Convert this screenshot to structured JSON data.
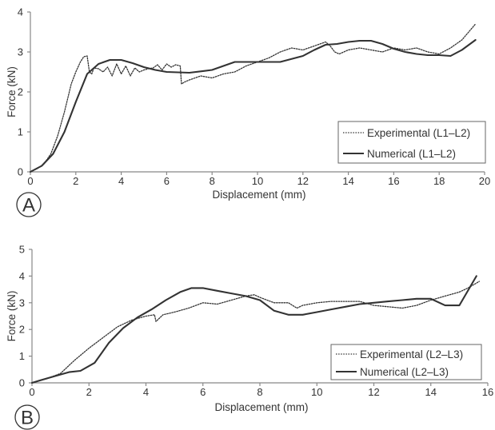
{
  "chart_data": [
    {
      "type": "line",
      "panel_label": "A",
      "xlabel": "Displacement (mm)",
      "ylabel": "Force (kN)",
      "xlim": [
        0,
        20
      ],
      "ylim": [
        0,
        4
      ],
      "xticks": [
        "0",
        "2",
        "4",
        "6",
        "8",
        "10",
        "12",
        "14",
        "16",
        "18",
        "20"
      ],
      "yticks": [
        "0",
        "1",
        "2",
        "3",
        "4"
      ],
      "grid": false,
      "legend_position": "bottom-right",
      "series": [
        {
          "name": "Experimental (L1–L2)",
          "style": "dotted",
          "color": "#333333",
          "x": [
            0,
            0.3,
            0.6,
            0.9,
            1.2,
            1.5,
            1.8,
            2.0,
            2.2,
            2.35,
            2.5,
            2.6,
            2.7,
            2.8,
            3.0,
            3.2,
            3.4,
            3.6,
            3.8,
            4.0,
            4.2,
            4.4,
            4.6,
            4.8,
            5.0,
            5.2,
            5.4,
            5.6,
            5.8,
            6.0,
            6.2,
            6.4,
            6.6,
            6.65,
            6.8,
            7.0,
            7.5,
            8.0,
            8.5,
            9.0,
            9.5,
            10.0,
            10.5,
            11.0,
            11.5,
            12.0,
            12.5,
            13.0,
            13.2,
            13.4,
            13.6,
            14.0,
            14.5,
            15.0,
            15.5,
            16.0,
            16.5,
            17.0,
            17.5,
            18.0,
            18.5,
            19.0,
            19.3,
            19.6
          ],
          "y": [
            0.0,
            0.08,
            0.2,
            0.45,
            0.9,
            1.5,
            2.2,
            2.5,
            2.75,
            2.88,
            2.9,
            2.5,
            2.45,
            2.6,
            2.58,
            2.5,
            2.62,
            2.4,
            2.7,
            2.45,
            2.65,
            2.4,
            2.6,
            2.5,
            2.55,
            2.58,
            2.6,
            2.68,
            2.55,
            2.7,
            2.62,
            2.68,
            2.65,
            2.2,
            2.25,
            2.3,
            2.4,
            2.35,
            2.45,
            2.5,
            2.65,
            2.75,
            2.85,
            3.0,
            3.1,
            3.05,
            3.15,
            3.25,
            3.15,
            3.0,
            2.95,
            3.05,
            3.1,
            3.05,
            3.0,
            3.1,
            3.05,
            3.1,
            3.0,
            2.95,
            3.1,
            3.3,
            3.5,
            3.7
          ]
        },
        {
          "name": "Numerical (L1–L2)",
          "style": "solid",
          "color": "#333333",
          "x": [
            0,
            0.5,
            1.0,
            1.5,
            2.0,
            2.5,
            3.0,
            3.5,
            4.0,
            4.5,
            5.0,
            5.5,
            6.0,
            7.0,
            8.0,
            8.5,
            9.0,
            10.0,
            11.0,
            12.0,
            12.5,
            13.0,
            13.5,
            14.0,
            14.5,
            15.0,
            15.5,
            16.0,
            16.5,
            17.0,
            17.5,
            18.0,
            18.5,
            19.0,
            19.6
          ],
          "y": [
            0.0,
            0.15,
            0.45,
            1.0,
            1.75,
            2.45,
            2.7,
            2.8,
            2.8,
            2.72,
            2.62,
            2.55,
            2.5,
            2.48,
            2.55,
            2.65,
            2.75,
            2.75,
            2.75,
            2.9,
            3.05,
            3.18,
            3.2,
            3.25,
            3.28,
            3.28,
            3.2,
            3.08,
            3.0,
            2.95,
            2.92,
            2.92,
            2.9,
            3.05,
            3.3
          ]
        }
      ]
    },
    {
      "type": "line",
      "panel_label": "B",
      "xlabel": "Displacement (mm)",
      "ylabel": "Force (kN)",
      "xlim": [
        0,
        16
      ],
      "ylim": [
        0,
        5
      ],
      "xticks": [
        "0",
        "2",
        "4",
        "6",
        "8",
        "10",
        "12",
        "14",
        "16"
      ],
      "yticks": [
        "0",
        "1",
        "2",
        "3",
        "4",
        "5"
      ],
      "grid": false,
      "legend_position": "bottom-right",
      "series": [
        {
          "name": "Experimental (L2–L3)",
          "style": "dotted",
          "color": "#333333",
          "x": [
            0,
            0.5,
            1.0,
            1.5,
            2.0,
            2.5,
            3.0,
            3.5,
            4.0,
            4.3,
            4.35,
            4.6,
            5.0,
            5.5,
            6.0,
            6.5,
            7.0,
            7.5,
            7.8,
            8.0,
            8.5,
            9.0,
            9.3,
            9.5,
            10.0,
            10.5,
            11.0,
            11.5,
            12.0,
            12.5,
            13.0,
            13.5,
            14.0,
            14.5,
            15.0,
            15.3,
            15.7
          ],
          "y": [
            0.0,
            0.15,
            0.35,
            0.85,
            1.3,
            1.7,
            2.1,
            2.35,
            2.5,
            2.55,
            2.3,
            2.55,
            2.65,
            2.8,
            3.0,
            2.95,
            3.1,
            3.25,
            3.3,
            3.2,
            3.0,
            3.0,
            2.8,
            2.9,
            3.0,
            3.05,
            3.05,
            3.05,
            2.9,
            2.85,
            2.8,
            2.9,
            3.1,
            3.25,
            3.4,
            3.55,
            3.8
          ]
        },
        {
          "name": "Numerical (L2–L3)",
          "style": "solid",
          "color": "#333333",
          "x": [
            0,
            0.3,
            0.8,
            1.3,
            1.7,
            2.2,
            2.7,
            3.2,
            3.7,
            4.2,
            4.7,
            5.2,
            5.6,
            6.0,
            6.5,
            7.0,
            7.5,
            8.0,
            8.5,
            9.0,
            9.5,
            10.0,
            10.5,
            11.0,
            11.5,
            12.0,
            12.5,
            13.0,
            13.5,
            14.0,
            14.5,
            15.0,
            15.6
          ],
          "y": [
            0.0,
            0.1,
            0.25,
            0.4,
            0.45,
            0.75,
            1.5,
            2.05,
            2.45,
            2.75,
            3.1,
            3.4,
            3.55,
            3.55,
            3.45,
            3.35,
            3.25,
            3.1,
            2.7,
            2.55,
            2.55,
            2.65,
            2.75,
            2.85,
            2.95,
            3.0,
            3.05,
            3.1,
            3.15,
            3.15,
            2.9,
            2.9,
            4.0
          ]
        }
      ]
    }
  ]
}
